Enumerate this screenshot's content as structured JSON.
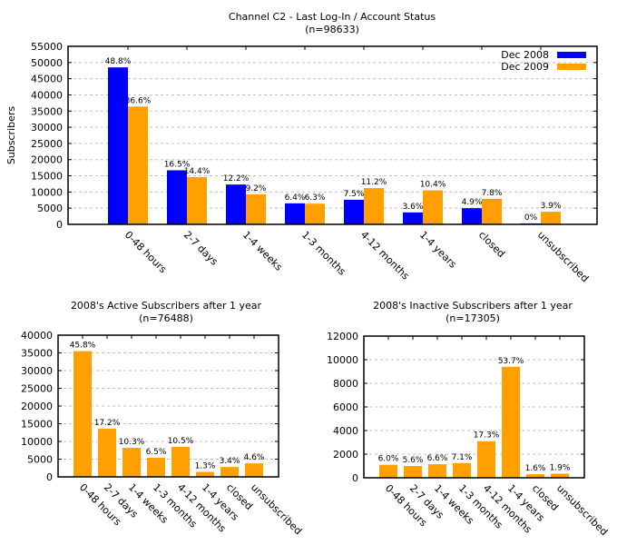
{
  "chart_data": [
    {
      "type": "bar",
      "title": "Channel C2 - Last Log-In / Account Status",
      "subtitle": "(n=98633)",
      "xlabel": "",
      "ylabel": "Subscribers",
      "ylim": [
        0,
        55000
      ],
      "yticks": [
        0,
        5000,
        10000,
        15000,
        20000,
        25000,
        30000,
        35000,
        40000,
        45000,
        50000,
        55000
      ],
      "grid": true,
      "legend_position": "top-right",
      "categories": [
        "0-48 hours",
        "2-7 days",
        "1-4 weeks",
        "1-3 months",
        "4-12 months",
        "1-4 years",
        "closed",
        "unsubscribed"
      ],
      "series": [
        {
          "name": "Dec 2008",
          "color": "#0000ff",
          "values": [
            48500,
            16700,
            12300,
            6500,
            7600,
            3700,
            5000,
            300
          ],
          "labels": [
            "48.8%",
            "16.5%",
            "12.2%",
            "6.4%",
            "7.5%",
            "3.6%",
            "4.9%",
            "0%"
          ]
        },
        {
          "name": "Dec 2009",
          "color": "#ffa000",
          "values": [
            36400,
            14600,
            9300,
            6400,
            11200,
            10500,
            7900,
            3900
          ],
          "labels": [
            "36.6%",
            "14.4%",
            "9.2%",
            "6.3%",
            "11.2%",
            "10.4%",
            "7.8%",
            "3.9%"
          ]
        }
      ]
    },
    {
      "type": "bar",
      "title": "2008's Active Subscribers after 1 year",
      "subtitle": "(n=76488)",
      "xlabel": "",
      "ylabel": "",
      "ylim": [
        0,
        40000
      ],
      "yticks": [
        0,
        5000,
        10000,
        15000,
        20000,
        25000,
        30000,
        35000,
        40000
      ],
      "grid": true,
      "categories": [
        "0-48 hours",
        "2-7 days",
        "1-4 weeks",
        "1-3 months",
        "4-12 months",
        "1-4 years",
        "closed",
        "unsubscribed"
      ],
      "series": [
        {
          "name": "Active",
          "color": "#ffa000",
          "values": [
            35500,
            13600,
            8200,
            5400,
            8500,
            1400,
            2800,
            3800
          ],
          "labels": [
            "45.8%",
            "17.2%",
            "10.3%",
            "6.5%",
            "10.5%",
            "1.3%",
            "3.4%",
            "4.6%"
          ]
        }
      ]
    },
    {
      "type": "bar",
      "title": "2008's Inactive Subscribers after 1 year",
      "subtitle": "(n=17305)",
      "xlabel": "",
      "ylabel": "",
      "ylim": [
        0,
        12000
      ],
      "yticks": [
        0,
        2000,
        4000,
        6000,
        8000,
        10000,
        12000
      ],
      "grid": true,
      "categories": [
        "0-48 hours",
        "2-7 days",
        "1-4 weeks",
        "1-3 months",
        "4-12 months",
        "1-4 years",
        "closed",
        "unsubscribed"
      ],
      "series": [
        {
          "name": "Inactive",
          "color": "#ffa000",
          "values": [
            1100,
            1000,
            1150,
            1250,
            3100,
            9400,
            300,
            350
          ],
          "labels": [
            "6.0%",
            "5.6%",
            "6.6%",
            "7.1%",
            "17.3%",
            "53.7%",
            "1.6%",
            "1.9%"
          ]
        }
      ]
    }
  ]
}
